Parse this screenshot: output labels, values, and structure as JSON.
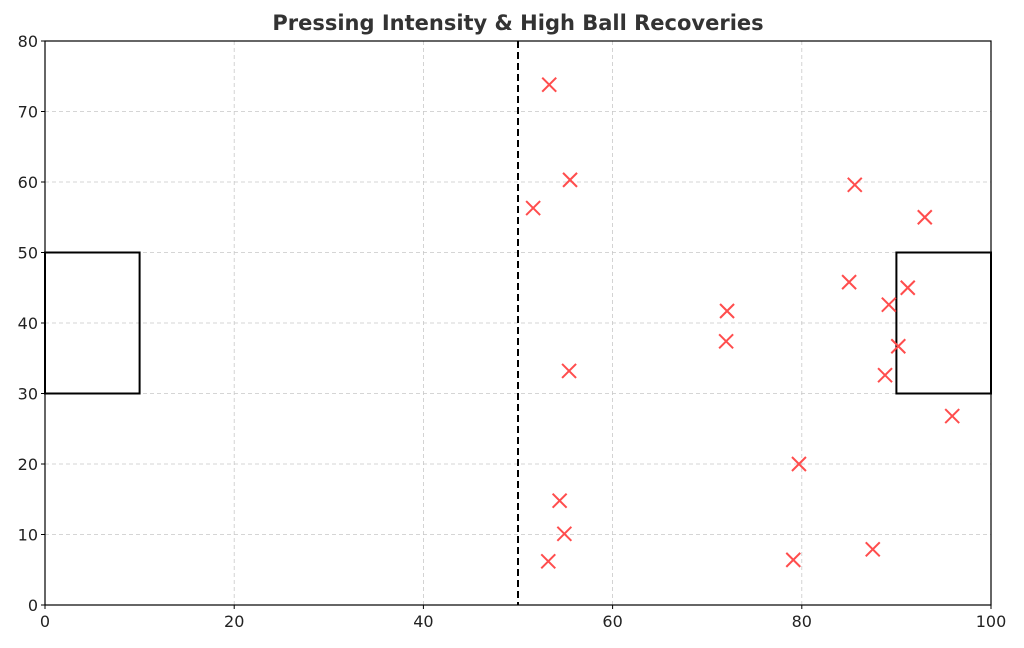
{
  "chart_data": {
    "type": "scatter",
    "title": "Pressing Intensity & High Ball Recoveries",
    "xlabel": "",
    "ylabel": "",
    "xlim": [
      0,
      100
    ],
    "ylim": [
      0,
      80
    ],
    "xticks": [
      0,
      20,
      40,
      60,
      80,
      100
    ],
    "yticks": [
      0,
      10,
      20,
      30,
      40,
      50,
      60,
      70,
      80
    ],
    "grid": true,
    "marker_color": "#ff4d4d",
    "marker": "x",
    "halfway_line_x": 50,
    "penalty_boxes": [
      {
        "x": [
          0,
          10
        ],
        "y": [
          30,
          50
        ]
      },
      {
        "x": [
          90,
          100
        ],
        "y": [
          30,
          50
        ]
      }
    ],
    "series": [
      {
        "name": "High Ball Recoveries",
        "points": [
          [
            53.3,
            73.8
          ],
          [
            55.5,
            60.3
          ],
          [
            51.6,
            56.3
          ],
          [
            85.6,
            59.6
          ],
          [
            93.0,
            55.0
          ],
          [
            85.0,
            45.8
          ],
          [
            91.2,
            45.0
          ],
          [
            89.2,
            42.6
          ],
          [
            72.1,
            41.7
          ],
          [
            90.2,
            36.7
          ],
          [
            72.0,
            37.4
          ],
          [
            55.4,
            33.2
          ],
          [
            88.8,
            32.6
          ],
          [
            95.9,
            26.8
          ],
          [
            79.7,
            20.0
          ],
          [
            54.4,
            14.8
          ],
          [
            54.9,
            10.1
          ],
          [
            53.2,
            6.2
          ],
          [
            79.1,
            6.4
          ],
          [
            87.5,
            7.9
          ]
        ]
      }
    ]
  }
}
